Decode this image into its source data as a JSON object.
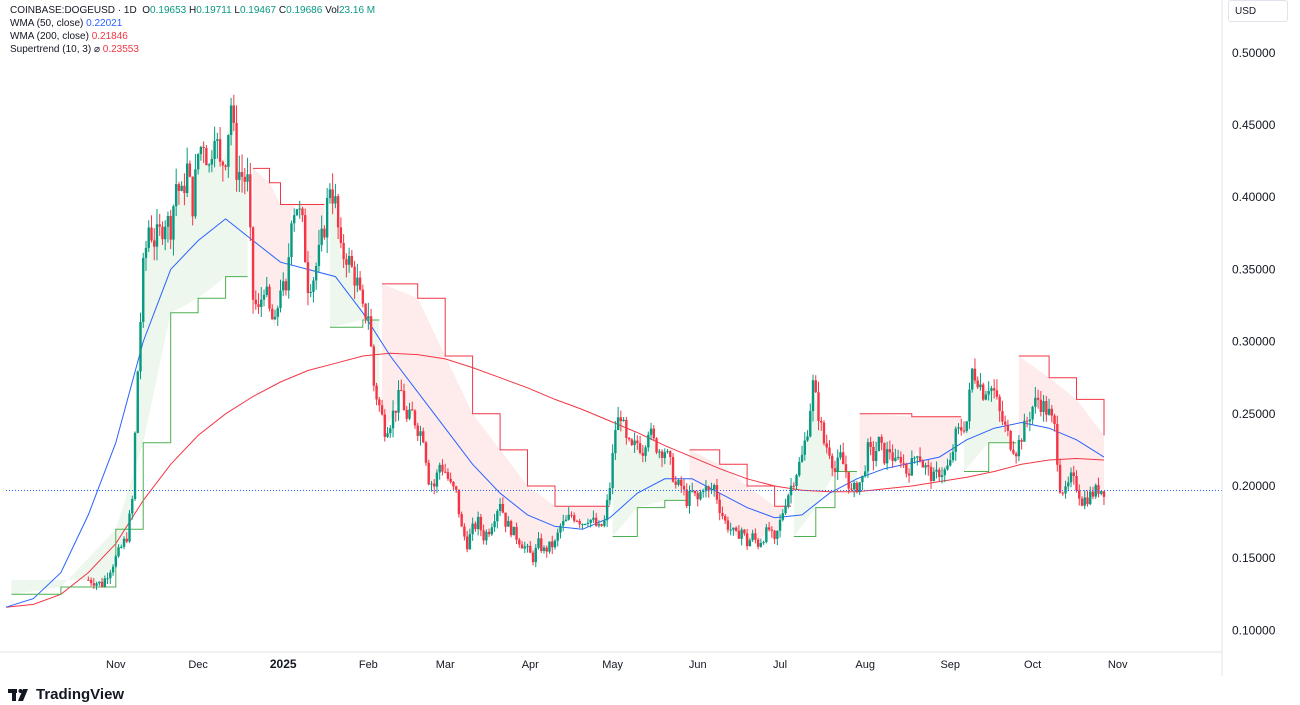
{
  "header": {
    "symbol": "COINBASE:DOGEUSD · 1D",
    "ohlc": {
      "o_label": "O",
      "o": "0.19653",
      "h_label": "H",
      "h": "0.19711",
      "l_label": "L",
      "l": "0.19467",
      "c_label": "C",
      "c": "0.19686",
      "vol_label": "Vol",
      "vol": "23.16 M"
    },
    "indicators": [
      {
        "label": "WMA (50, close)",
        "value": "0.22021",
        "color": "#2962ff"
      },
      {
        "label": "WMA (200, close)",
        "value": "0.21846",
        "color": "#f23645"
      },
      {
        "label": "Supertrend (10, 3)",
        "symbol": "⌀",
        "value": "0.23553",
        "color": "#f23645"
      }
    ]
  },
  "currency": "USD",
  "logo": "TradingView",
  "colors": {
    "up": "#089981",
    "down": "#f23645",
    "wma50": "#2962ff",
    "wma200": "#f23645",
    "st_up": "#4caf50",
    "st_down": "#f23645"
  },
  "chart_data": {
    "type": "candlestick",
    "ylim": [
      0.085,
      0.52
    ],
    "y_ticks": [
      "0.50000",
      "0.45000",
      "0.40000",
      "0.35000",
      "0.30000",
      "0.25000",
      "0.20000",
      "0.15000",
      "0.10000"
    ],
    "y_tick_values": [
      0.5,
      0.45,
      0.4,
      0.35,
      0.3,
      0.25,
      0.2,
      0.15,
      0.1
    ],
    "x_range_days": [
      -40,
      403
    ],
    "x_ticks": [
      {
        "label": "Nov",
        "day": 0
      },
      {
        "label": "Dec",
        "day": 30
      },
      {
        "label": "2025",
        "day": 61,
        "bold": true
      },
      {
        "label": "Feb",
        "day": 92
      },
      {
        "label": "Mar",
        "day": 120
      },
      {
        "label": "Apr",
        "day": 151
      },
      {
        "label": "May",
        "day": 181
      },
      {
        "label": "Jun",
        "day": 212
      },
      {
        "label": "Jul",
        "day": 242
      },
      {
        "label": "Aug",
        "day": 273
      },
      {
        "label": "Sep",
        "day": 304
      },
      {
        "label": "Oct",
        "day": 334
      },
      {
        "label": "Nov",
        "day": 365
      }
    ],
    "last_price": 0.19686,
    "close_series": [
      [
        -10,
        0.135
      ],
      [
        -5,
        0.132
      ],
      [
        0,
        0.15
      ],
      [
        4,
        0.165
      ],
      [
        6,
        0.19
      ],
      [
        8,
        0.28
      ],
      [
        10,
        0.35
      ],
      [
        12,
        0.38
      ],
      [
        14,
        0.37
      ],
      [
        16,
        0.375
      ],
      [
        18,
        0.385
      ],
      [
        20,
        0.38
      ],
      [
        22,
        0.41
      ],
      [
        24,
        0.4
      ],
      [
        26,
        0.42
      ],
      [
        28,
        0.395
      ],
      [
        30,
        0.43
      ],
      [
        32,
        0.44
      ],
      [
        34,
        0.42
      ],
      [
        36,
        0.45
      ],
      [
        38,
        0.42
      ],
      [
        40,
        0.43
      ],
      [
        42,
        0.465
      ],
      [
        44,
        0.42
      ],
      [
        46,
        0.415
      ],
      [
        48,
        0.41
      ],
      [
        50,
        0.33
      ],
      [
        52,
        0.32
      ],
      [
        54,
        0.34
      ],
      [
        56,
        0.32
      ],
      [
        58,
        0.31
      ],
      [
        60,
        0.34
      ],
      [
        62,
        0.33
      ],
      [
        64,
        0.39
      ],
      [
        66,
        0.395
      ],
      [
        68,
        0.38
      ],
      [
        70,
        0.34
      ],
      [
        72,
        0.345
      ],
      [
        74,
        0.36
      ],
      [
        76,
        0.38
      ],
      [
        78,
        0.41
      ],
      [
        80,
        0.395
      ],
      [
        82,
        0.36
      ],
      [
        84,
        0.36
      ],
      [
        86,
        0.35
      ],
      [
        88,
        0.34
      ],
      [
        90,
        0.32
      ],
      [
        92,
        0.32
      ],
      [
        94,
        0.27
      ],
      [
        96,
        0.255
      ],
      [
        98,
        0.24
      ],
      [
        100,
        0.245
      ],
      [
        102,
        0.255
      ],
      [
        104,
        0.265
      ],
      [
        106,
        0.245
      ],
      [
        108,
        0.25
      ],
      [
        110,
        0.24
      ],
      [
        112,
        0.235
      ],
      [
        114,
        0.205
      ],
      [
        116,
        0.2
      ],
      [
        118,
        0.215
      ],
      [
        120,
        0.21
      ],
      [
        122,
        0.2
      ],
      [
        124,
        0.195
      ],
      [
        126,
        0.17
      ],
      [
        128,
        0.16
      ],
      [
        130,
        0.17
      ],
      [
        132,
        0.175
      ],
      [
        134,
        0.165
      ],
      [
        136,
        0.17
      ],
      [
        138,
        0.18
      ],
      [
        140,
        0.19
      ],
      [
        142,
        0.175
      ],
      [
        144,
        0.17
      ],
      [
        146,
        0.165
      ],
      [
        148,
        0.16
      ],
      [
        150,
        0.155
      ],
      [
        152,
        0.15
      ],
      [
        154,
        0.16
      ],
      [
        156,
        0.155
      ],
      [
        158,
        0.158
      ],
      [
        160,
        0.16
      ],
      [
        162,
        0.172
      ],
      [
        164,
        0.175
      ],
      [
        166,
        0.18
      ],
      [
        168,
        0.178
      ],
      [
        170,
        0.175
      ],
      [
        172,
        0.178
      ],
      [
        174,
        0.175
      ],
      [
        176,
        0.17
      ],
      [
        178,
        0.175
      ],
      [
        180,
        0.2
      ],
      [
        182,
        0.24
      ],
      [
        184,
        0.25
      ],
      [
        186,
        0.23
      ],
      [
        188,
        0.225
      ],
      [
        190,
        0.23
      ],
      [
        192,
        0.225
      ],
      [
        194,
        0.24
      ],
      [
        196,
        0.23
      ],
      [
        198,
        0.225
      ],
      [
        200,
        0.225
      ],
      [
        202,
        0.215
      ],
      [
        204,
        0.2
      ],
      [
        206,
        0.2
      ],
      [
        208,
        0.19
      ],
      [
        210,
        0.195
      ],
      [
        212,
        0.19
      ],
      [
        214,
        0.2
      ],
      [
        216,
        0.195
      ],
      [
        218,
        0.2
      ],
      [
        220,
        0.185
      ],
      [
        222,
        0.175
      ],
      [
        224,
        0.17
      ],
      [
        226,
        0.165
      ],
      [
        228,
        0.17
      ],
      [
        230,
        0.16
      ],
      [
        232,
        0.165
      ],
      [
        234,
        0.16
      ],
      [
        236,
        0.165
      ],
      [
        238,
        0.17
      ],
      [
        240,
        0.16
      ],
      [
        242,
        0.175
      ],
      [
        244,
        0.19
      ],
      [
        246,
        0.2
      ],
      [
        248,
        0.21
      ],
      [
        250,
        0.22
      ],
      [
        252,
        0.24
      ],
      [
        254,
        0.27
      ],
      [
        256,
        0.25
      ],
      [
        258,
        0.23
      ],
      [
        260,
        0.225
      ],
      [
        262,
        0.21
      ],
      [
        264,
        0.22
      ],
      [
        266,
        0.21
      ],
      [
        268,
        0.195
      ],
      [
        270,
        0.2
      ],
      [
        272,
        0.205
      ],
      [
        274,
        0.225
      ],
      [
        276,
        0.22
      ],
      [
        278,
        0.23
      ],
      [
        280,
        0.22
      ],
      [
        282,
        0.225
      ],
      [
        284,
        0.215
      ],
      [
        286,
        0.22
      ],
      [
        288,
        0.21
      ],
      [
        290,
        0.215
      ],
      [
        292,
        0.225
      ],
      [
        294,
        0.215
      ],
      [
        296,
        0.21
      ],
      [
        298,
        0.205
      ],
      [
        300,
        0.21
      ],
      [
        302,
        0.21
      ],
      [
        304,
        0.215
      ],
      [
        306,
        0.235
      ],
      [
        308,
        0.24
      ],
      [
        310,
        0.245
      ],
      [
        312,
        0.28
      ],
      [
        314,
        0.275
      ],
      [
        316,
        0.265
      ],
      [
        318,
        0.27
      ],
      [
        320,
        0.265
      ],
      [
        322,
        0.25
      ],
      [
        324,
        0.24
      ],
      [
        326,
        0.23
      ],
      [
        328,
        0.225
      ],
      [
        330,
        0.235
      ],
      [
        332,
        0.245
      ],
      [
        334,
        0.255
      ],
      [
        336,
        0.26
      ],
      [
        338,
        0.255
      ],
      [
        340,
        0.25
      ],
      [
        342,
        0.24
      ],
      [
        344,
        0.2
      ],
      [
        346,
        0.195
      ],
      [
        348,
        0.205
      ],
      [
        350,
        0.2
      ],
      [
        352,
        0.19
      ],
      [
        354,
        0.192
      ],
      [
        356,
        0.195
      ],
      [
        358,
        0.198
      ],
      [
        360,
        0.197
      ]
    ],
    "wma50": [
      [
        -40,
        0.116
      ],
      [
        -30,
        0.122
      ],
      [
        -20,
        0.14
      ],
      [
        -10,
        0.18
      ],
      [
        0,
        0.23
      ],
      [
        10,
        0.3
      ],
      [
        20,
        0.35
      ],
      [
        30,
        0.37
      ],
      [
        40,
        0.385
      ],
      [
        50,
        0.37
      ],
      [
        60,
        0.355
      ],
      [
        70,
        0.35
      ],
      [
        80,
        0.345
      ],
      [
        90,
        0.32
      ],
      [
        100,
        0.29
      ],
      [
        110,
        0.265
      ],
      [
        120,
        0.24
      ],
      [
        130,
        0.215
      ],
      [
        140,
        0.195
      ],
      [
        150,
        0.18
      ],
      [
        160,
        0.172
      ],
      [
        170,
        0.17
      ],
      [
        180,
        0.178
      ],
      [
        190,
        0.195
      ],
      [
        200,
        0.205
      ],
      [
        210,
        0.205
      ],
      [
        220,
        0.195
      ],
      [
        230,
        0.185
      ],
      [
        240,
        0.178
      ],
      [
        250,
        0.18
      ],
      [
        260,
        0.195
      ],
      [
        270,
        0.205
      ],
      [
        280,
        0.212
      ],
      [
        290,
        0.216
      ],
      [
        300,
        0.22
      ],
      [
        310,
        0.232
      ],
      [
        320,
        0.24
      ],
      [
        330,
        0.244
      ],
      [
        340,
        0.24
      ],
      [
        350,
        0.232
      ],
      [
        360,
        0.22
      ]
    ],
    "wma200": [
      [
        -40,
        0.116
      ],
      [
        -30,
        0.118
      ],
      [
        -20,
        0.125
      ],
      [
        -10,
        0.14
      ],
      [
        0,
        0.16
      ],
      [
        10,
        0.19
      ],
      [
        20,
        0.215
      ],
      [
        30,
        0.235
      ],
      [
        40,
        0.25
      ],
      [
        50,
        0.262
      ],
      [
        60,
        0.272
      ],
      [
        70,
        0.28
      ],
      [
        80,
        0.285
      ],
      [
        90,
        0.29
      ],
      [
        100,
        0.292
      ],
      [
        110,
        0.291
      ],
      [
        120,
        0.288
      ],
      [
        130,
        0.282
      ],
      [
        140,
        0.275
      ],
      [
        150,
        0.268
      ],
      [
        160,
        0.26
      ],
      [
        170,
        0.253
      ],
      [
        180,
        0.245
      ],
      [
        190,
        0.237
      ],
      [
        200,
        0.228
      ],
      [
        210,
        0.22
      ],
      [
        220,
        0.212
      ],
      [
        230,
        0.205
      ],
      [
        240,
        0.2
      ],
      [
        250,
        0.197
      ],
      [
        260,
        0.196
      ],
      [
        270,
        0.196
      ],
      [
        280,
        0.198
      ],
      [
        290,
        0.2
      ],
      [
        300,
        0.203
      ],
      [
        310,
        0.206
      ],
      [
        320,
        0.21
      ],
      [
        330,
        0.215
      ],
      [
        340,
        0.218
      ],
      [
        350,
        0.219
      ],
      [
        360,
        0.218
      ]
    ],
    "supertrend": [
      {
        "dir": "up",
        "points": [
          [
            -38,
            0.125
          ],
          [
            -20,
            0.13
          ],
          [
            0,
            0.17
          ],
          [
            10,
            0.23
          ],
          [
            20,
            0.32
          ],
          [
            30,
            0.33
          ],
          [
            40,
            0.345
          ],
          [
            48,
            0.345
          ]
        ]
      },
      {
        "dir": "down",
        "points": [
          [
            50,
            0.42
          ],
          [
            56,
            0.41
          ],
          [
            60,
            0.395
          ],
          [
            76,
            0.395
          ]
        ]
      },
      {
        "dir": "up",
        "points": [
          [
            78,
            0.31
          ],
          [
            90,
            0.315
          ],
          [
            96,
            0.315
          ]
        ]
      },
      {
        "dir": "down",
        "points": [
          [
            97,
            0.34
          ],
          [
            110,
            0.33
          ],
          [
            120,
            0.29
          ],
          [
            130,
            0.25
          ],
          [
            140,
            0.225
          ],
          [
            150,
            0.2
          ],
          [
            160,
            0.186
          ],
          [
            180,
            0.186
          ]
        ]
      },
      {
        "dir": "up",
        "points": [
          [
            181,
            0.165
          ],
          [
            190,
            0.185
          ],
          [
            200,
            0.19
          ],
          [
            208,
            0.19
          ]
        ]
      },
      {
        "dir": "down",
        "points": [
          [
            209,
            0.225
          ],
          [
            220,
            0.215
          ],
          [
            230,
            0.2
          ],
          [
            240,
            0.186
          ],
          [
            246,
            0.186
          ]
        ]
      },
      {
        "dir": "up",
        "points": [
          [
            247,
            0.165
          ],
          [
            255,
            0.185
          ],
          [
            262,
            0.21
          ],
          [
            270,
            0.21
          ]
        ]
      },
      {
        "dir": "down",
        "points": [
          [
            271,
            0.25
          ],
          [
            290,
            0.248
          ],
          [
            308,
            0.248
          ]
        ]
      },
      {
        "dir": "up",
        "points": [
          [
            309,
            0.21
          ],
          [
            318,
            0.23
          ],
          [
            328,
            0.23
          ]
        ]
      },
      {
        "dir": "down",
        "points": [
          [
            329,
            0.29
          ],
          [
            340,
            0.275
          ],
          [
            350,
            0.26
          ],
          [
            360,
            0.235
          ]
        ]
      }
    ]
  }
}
